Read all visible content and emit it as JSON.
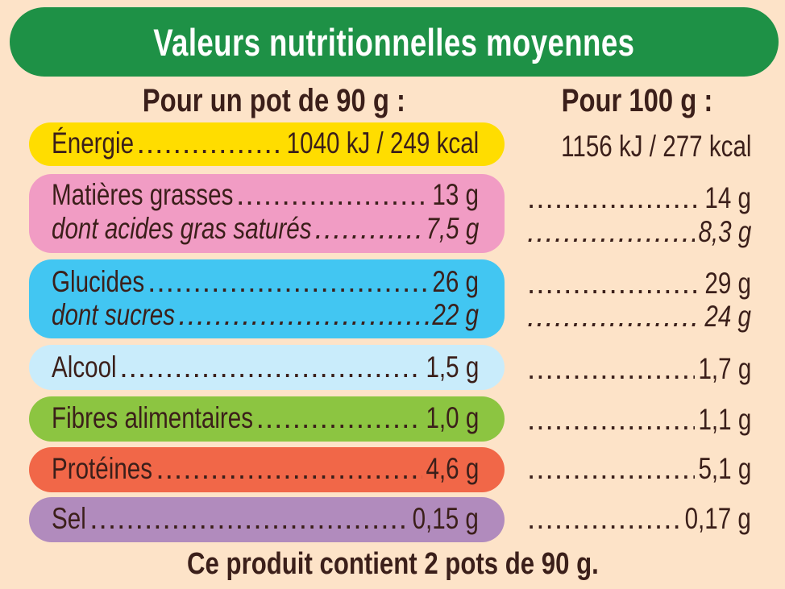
{
  "title": "Valeurs nutritionnelles moyennes",
  "headers": {
    "per_portion": "Pour un pot de 90 g :",
    "per_100g": "Pour 100 g :"
  },
  "colors": {
    "title": "#1e9146",
    "energy": "#ffdd00",
    "fat": "#f19cc4",
    "carbs": "#42c6f2",
    "alcohol": "#c9ecfb",
    "fibre": "#8cc541",
    "protein": "#f16748",
    "salt": "#b18bbd",
    "text": "#3b1f1a"
  },
  "rows": {
    "energy": {
      "label": "Énergie",
      "portion": "1040 kJ / 249 kcal",
      "per100": "1156 kJ / 277 kcal"
    },
    "fat": {
      "label": "Matières grasses",
      "portion": "13 g",
      "per100": "14 g"
    },
    "saturates": {
      "label": "dont acides gras saturés",
      "portion": "7,5 g",
      "per100": "8,3 g"
    },
    "carbs": {
      "label": "Glucides",
      "portion": "26 g",
      "per100": "29 g"
    },
    "sugars": {
      "label": "dont sucres",
      "portion": "22 g",
      "per100": "24 g"
    },
    "alcohol": {
      "label": "Alcool",
      "portion": "1,5 g",
      "per100": "1,7 g"
    },
    "fibre": {
      "label": "Fibres alimentaires",
      "portion": "1,0 g",
      "per100": "1,1 g"
    },
    "protein": {
      "label": "Protéines",
      "portion": "4,6 g",
      "per100": "5,1 g"
    },
    "salt": {
      "label": "Sel",
      "portion": "0,15 g",
      "per100": "0,17 g"
    }
  },
  "footer": "Ce produit contient 2 pots de 90 g."
}
